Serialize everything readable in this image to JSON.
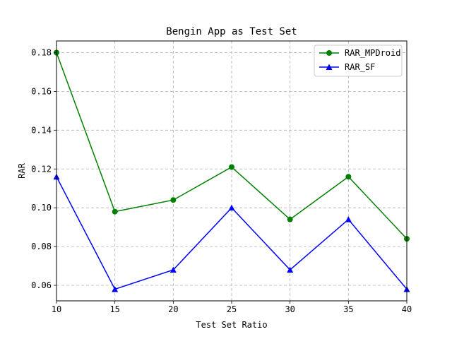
{
  "chart_data": {
    "type": "line",
    "title": "Bengin App as Test Set",
    "xlabel": "Test Set Ratio",
    "ylabel": "RAR",
    "x": [
      10,
      15,
      20,
      25,
      30,
      35,
      40
    ],
    "xlim": [
      10,
      40
    ],
    "ylim": [
      0.052,
      0.186
    ],
    "xticks": [
      "10",
      "15",
      "20",
      "25",
      "30",
      "35",
      "40"
    ],
    "yticks": [
      "0.06",
      "0.08",
      "0.10",
      "0.12",
      "0.14",
      "0.16",
      "0.18"
    ],
    "grid": true,
    "legend_position": "top-right",
    "series": [
      {
        "name": "RAR_MPDroid",
        "color": "#008000",
        "marker": "circle",
        "values": [
          0.18,
          0.098,
          0.104,
          0.121,
          0.094,
          0.116,
          0.084
        ]
      },
      {
        "name": "RAR_SF",
        "color": "#0000ff",
        "marker": "triangle",
        "values": [
          0.116,
          0.058,
          0.068,
          0.1,
          0.068,
          0.094,
          0.058
        ]
      }
    ]
  }
}
